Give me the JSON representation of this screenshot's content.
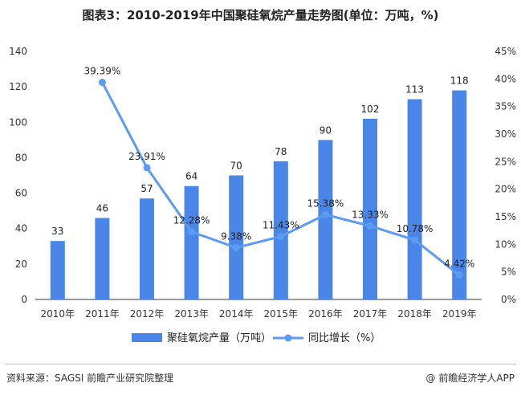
{
  "title": "图表3：2010-2019年中国聚硅氧烷产量走势图(单位：万吨，%)",
  "source": "资料来源：SAGSI 前瞻产业研究院整理",
  "attribution": "前瞻经济学人APP",
  "attribution_icon": "at-sign-icon",
  "chart_data": {
    "type": "bar",
    "categories": [
      "2010年",
      "2011年",
      "2012年",
      "2013年",
      "2014年",
      "2015年",
      "2016年",
      "2017年",
      "2018年",
      "2019年"
    ],
    "series": [
      {
        "name": "聚硅氧烷产量（万吨）",
        "type": "bar",
        "axis": "left",
        "color": "#4a86e8",
        "values": [
          33,
          46,
          57,
          64,
          70,
          78,
          90,
          102,
          113,
          118
        ],
        "labels": [
          "33",
          "46",
          "57",
          "64",
          "70",
          "78",
          "90",
          "102",
          "113",
          "118"
        ]
      },
      {
        "name": "同比增长（%）",
        "type": "line",
        "axis": "right",
        "color": "#5b9bf0",
        "values": [
          null,
          39.39,
          23.91,
          12.28,
          9.38,
          11.43,
          15.38,
          13.33,
          10.78,
          4.42
        ],
        "labels": [
          "",
          "39.39%",
          "23.91%",
          "12.28%",
          "9.38%",
          "11.43%",
          "15.38%",
          "13.33%",
          "10.78%",
          "4.42%"
        ]
      }
    ],
    "y_left": {
      "min": 0,
      "max": 140,
      "ticks": [
        "0",
        "20",
        "40",
        "60",
        "80",
        "100",
        "120",
        "140"
      ]
    },
    "y_right": {
      "min": 0,
      "max": 45,
      "ticks": [
        "0%",
        "5%",
        "10%",
        "15%",
        "20%",
        "25%",
        "30%",
        "35%",
        "40%",
        "45%"
      ]
    },
    "legend_position": "bottom",
    "grid": false
  }
}
